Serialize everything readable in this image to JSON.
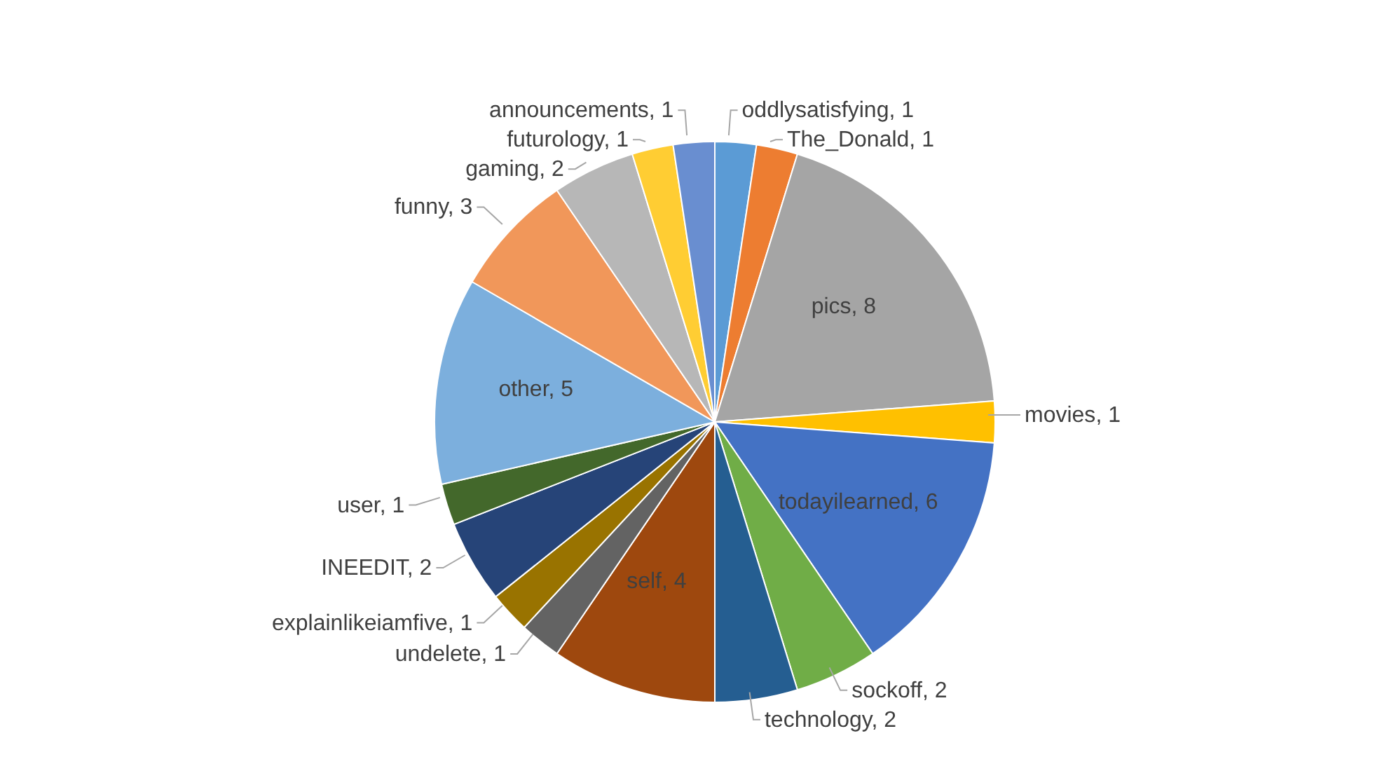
{
  "chart_data": {
    "type": "pie",
    "legend": false,
    "value_labels": [
      ", 1",
      ", 1",
      ", 8",
      ", 1",
      ", 6",
      ", 2",
      ", 2",
      ", 4",
      ", 1",
      ", 1",
      ", 2",
      ", 1",
      ", 5",
      ", 3",
      ", 2",
      ", 1",
      ", 1"
    ],
    "categories": [
      "oddlysatisfying",
      "The_Donald",
      "pics",
      "movies",
      "todayilearned",
      "sockoff",
      "technology",
      "self",
      "undelete",
      "explainlikeiamfive",
      "INEEDIT",
      "user",
      "other",
      "funny",
      "gaming",
      "futurology",
      "announcements"
    ],
    "values": [
      1,
      1,
      8,
      1,
      6,
      2,
      2,
      4,
      1,
      1,
      2,
      1,
      5,
      3,
      2,
      1,
      1
    ],
    "colors": [
      "#5b9bd5",
      "#ed7d31",
      "#a5a5a5",
      "#ffc000",
      "#4472c4",
      "#70ad47",
      "#255e91",
      "#9e480e",
      "#636363",
      "#997300",
      "#264478",
      "#43682b",
      "#7cafdd",
      "#f1975a",
      "#b7b7b7",
      "#ffcd33",
      "#698ed0"
    ]
  }
}
